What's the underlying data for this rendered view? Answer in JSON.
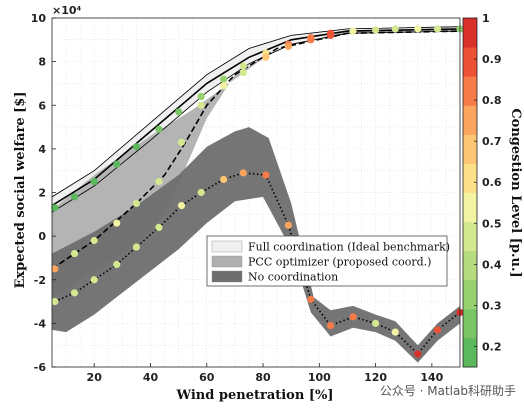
{
  "watermark": "公众号 · Matlab科研助手",
  "chart_data": {
    "type": "line",
    "xlabel": "Wind penetration [%]",
    "ylabel": "Expected social welfare [$]",
    "y_exponent": "×10⁴",
    "xlim": [
      5,
      150
    ],
    "ylim": [
      -6,
      10
    ],
    "xticks": [
      20,
      40,
      60,
      80,
      100,
      120,
      140
    ],
    "yticks": [
      -6,
      -4,
      -2,
      0,
      2,
      4,
      6,
      8,
      10
    ],
    "grid": true,
    "legend_position": "center-right",
    "colorbar": {
      "label": "Congestion Level [p.u.]",
      "ticks": [
        0.2,
        0.3,
        0.4,
        0.5,
        0.6,
        0.7,
        0.8,
        0.9,
        1
      ],
      "range": [
        0.15,
        1
      ],
      "colors": [
        "#5cb85c",
        "#79c465",
        "#97d06f",
        "#b6dc7f",
        "#d4e890",
        "#f2f3a3",
        "#fbe089",
        "#fcc674",
        "#fba55e",
        "#f77b49",
        "#ee5236",
        "#d9302a"
      ]
    },
    "series": [
      {
        "name": "Full coordination (Ideal benchmark)",
        "fill": "#f0f0f0",
        "line": "#000000",
        "dash": "solid",
        "band_upper": [
          [
            5,
            1.8
          ],
          [
            20,
            3.0
          ],
          [
            40,
            5.2
          ],
          [
            60,
            7.4
          ],
          [
            75,
            8.6
          ],
          [
            90,
            9.2
          ],
          [
            110,
            9.5
          ],
          [
            150,
            9.6
          ]
        ],
        "band_lower": [
          [
            5,
            1.1
          ],
          [
            20,
            2.3
          ],
          [
            40,
            4.4
          ],
          [
            60,
            6.6
          ],
          [
            75,
            7.9
          ],
          [
            90,
            8.8
          ],
          [
            110,
            9.3
          ],
          [
            150,
            9.4
          ]
        ],
        "center": [
          [
            5,
            1.4
          ],
          [
            20,
            2.6
          ],
          [
            40,
            4.8
          ],
          [
            60,
            7.0
          ],
          [
            75,
            8.2
          ],
          [
            90,
            9.0
          ],
          [
            110,
            9.4
          ],
          [
            150,
            9.5
          ]
        ],
        "markers": [
          [
            6,
            1.3,
            0.2
          ],
          [
            13,
            1.8,
            0.2
          ],
          [
            20,
            2.5,
            0.2
          ],
          [
            28,
            3.3,
            0.2
          ],
          [
            35,
            4.1,
            0.2
          ],
          [
            43,
            4.9,
            0.25
          ],
          [
            50,
            5.7,
            0.25
          ],
          [
            58,
            6.4,
            0.3
          ],
          [
            66,
            7.2,
            0.35
          ],
          [
            73,
            7.8,
            0.45
          ],
          [
            81,
            8.4,
            0.6
          ],
          [
            89,
            8.8,
            0.8
          ],
          [
            97,
            9.1,
            0.85
          ],
          [
            104,
            9.3,
            0.9
          ],
          [
            112,
            9.4,
            0.55
          ],
          [
            120,
            9.45,
            0.5
          ],
          [
            127,
            9.5,
            0.5
          ],
          [
            135,
            9.5,
            0.55
          ],
          [
            142,
            9.5,
            0.5
          ],
          [
            150,
            9.5,
            0.35
          ]
        ]
      },
      {
        "name": "PCC optimizer (proposed coord.)",
        "fill": "#b0b0b0",
        "line": "#000000",
        "dash": "dashed",
        "band_upper": [
          [
            5,
            1.2
          ],
          [
            20,
            2.8
          ],
          [
            40,
            4.6
          ],
          [
            55,
            5.8
          ],
          [
            70,
            7.2
          ],
          [
            85,
            8.6
          ],
          [
            110,
            9.4
          ],
          [
            150,
            9.5
          ]
        ],
        "band_lower": [
          [
            5,
            -2.8
          ],
          [
            20,
            -1.6
          ],
          [
            35,
            -0.4
          ],
          [
            45,
            1.0
          ],
          [
            52,
            3.0
          ],
          [
            60,
            5.4
          ],
          [
            70,
            7.4
          ],
          [
            85,
            8.6
          ],
          [
            110,
            9.3
          ],
          [
            150,
            9.4
          ]
        ],
        "center": [
          [
            5,
            -1.5
          ],
          [
            20,
            -0.2
          ],
          [
            35,
            1.5
          ],
          [
            45,
            2.8
          ],
          [
            52,
            4.2
          ],
          [
            60,
            6.0
          ],
          [
            70,
            7.4
          ],
          [
            85,
            8.6
          ],
          [
            110,
            9.3
          ],
          [
            150,
            9.4
          ]
        ],
        "markers": [
          [
            6,
            -1.5,
            0.75
          ],
          [
            13,
            -0.8,
            0.5
          ],
          [
            20,
            -0.2,
            0.5
          ],
          [
            28,
            0.6,
            0.55
          ],
          [
            35,
            1.5,
            0.5
          ],
          [
            43,
            2.5,
            0.45
          ],
          [
            51,
            4.3,
            0.5
          ],
          [
            58,
            6.0,
            0.45
          ],
          [
            66,
            6.9,
            0.55
          ],
          [
            73,
            7.5,
            0.5
          ],
          [
            81,
            8.2,
            0.65
          ],
          [
            89,
            8.7,
            0.75
          ],
          [
            97,
            9.0,
            0.85
          ],
          [
            104,
            9.2,
            0.9
          ]
        ]
      },
      {
        "name": "No coordination",
        "fill": "#6e6e6e",
        "line": "#000000",
        "dash": "dotted",
        "band_upper": [
          [
            5,
            -0.8
          ],
          [
            20,
            0.2
          ],
          [
            35,
            1.4
          ],
          [
            50,
            2.8
          ],
          [
            60,
            4.1
          ],
          [
            70,
            4.8
          ],
          [
            75,
            5.0
          ],
          [
            82,
            4.5
          ],
          [
            90,
            1.5
          ],
          [
            98,
            -2.8
          ],
          [
            104,
            -3.4
          ],
          [
            112,
            -3.2
          ],
          [
            120,
            -3.6
          ],
          [
            127,
            -3.9
          ],
          [
            135,
            -5.0
          ],
          [
            142,
            -4.0
          ],
          [
            150,
            -3.2
          ]
        ],
        "band_lower": [
          [
            5,
            -4.3
          ],
          [
            10,
            -4.4
          ],
          [
            20,
            -3.6
          ],
          [
            30,
            -2.6
          ],
          [
            40,
            -1.6
          ],
          [
            50,
            -0.6
          ],
          [
            60,
            0.6
          ],
          [
            70,
            1.6
          ],
          [
            80,
            1.8
          ],
          [
            90,
            -0.6
          ],
          [
            97,
            -3.5
          ],
          [
            104,
            -4.6
          ],
          [
            112,
            -4.2
          ],
          [
            120,
            -4.4
          ],
          [
            127,
            -4.8
          ],
          [
            135,
            -5.8
          ],
          [
            142,
            -4.8
          ],
          [
            150,
            -4.0
          ]
        ],
        "center": [
          [
            6,
            -3.0
          ],
          [
            13,
            -2.6
          ],
          [
            20,
            -2.0
          ],
          [
            28,
            -1.3
          ],
          [
            35,
            -0.5
          ],
          [
            43,
            0.4
          ],
          [
            51,
            1.4
          ],
          [
            58,
            2.0
          ],
          [
            66,
            2.6
          ],
          [
            73,
            2.9
          ],
          [
            81,
            2.8
          ],
          [
            89,
            0.5
          ],
          [
            97,
            -2.9
          ],
          [
            104,
            -4.1
          ],
          [
            112,
            -3.7
          ],
          [
            120,
            -4.0
          ],
          [
            127,
            -4.4
          ],
          [
            135,
            -5.4
          ],
          [
            142,
            -4.3
          ],
          [
            150,
            -3.5
          ]
        ],
        "markers": [
          [
            6,
            -3.0,
            0.5
          ],
          [
            13,
            -2.6,
            0.5
          ],
          [
            20,
            -2.0,
            0.5
          ],
          [
            28,
            -1.3,
            0.5
          ],
          [
            35,
            -0.5,
            0.5
          ],
          [
            43,
            0.4,
            0.5
          ],
          [
            51,
            1.4,
            0.55
          ],
          [
            58,
            2.0,
            0.5
          ],
          [
            66,
            2.6,
            0.65
          ],
          [
            73,
            2.9,
            0.75
          ],
          [
            81,
            2.8,
            0.85
          ],
          [
            89,
            0.5,
            0.75
          ],
          [
            97,
            -2.9,
            0.8
          ],
          [
            104,
            -4.1,
            0.85
          ],
          [
            112,
            -3.7,
            0.8
          ],
          [
            120,
            -4.0,
            0.45
          ],
          [
            127,
            -4.4,
            0.55
          ],
          [
            135,
            -5.4,
            0.95
          ],
          [
            142,
            -4.3,
            0.9
          ],
          [
            150,
            -3.5,
            0.95
          ]
        ]
      }
    ]
  }
}
